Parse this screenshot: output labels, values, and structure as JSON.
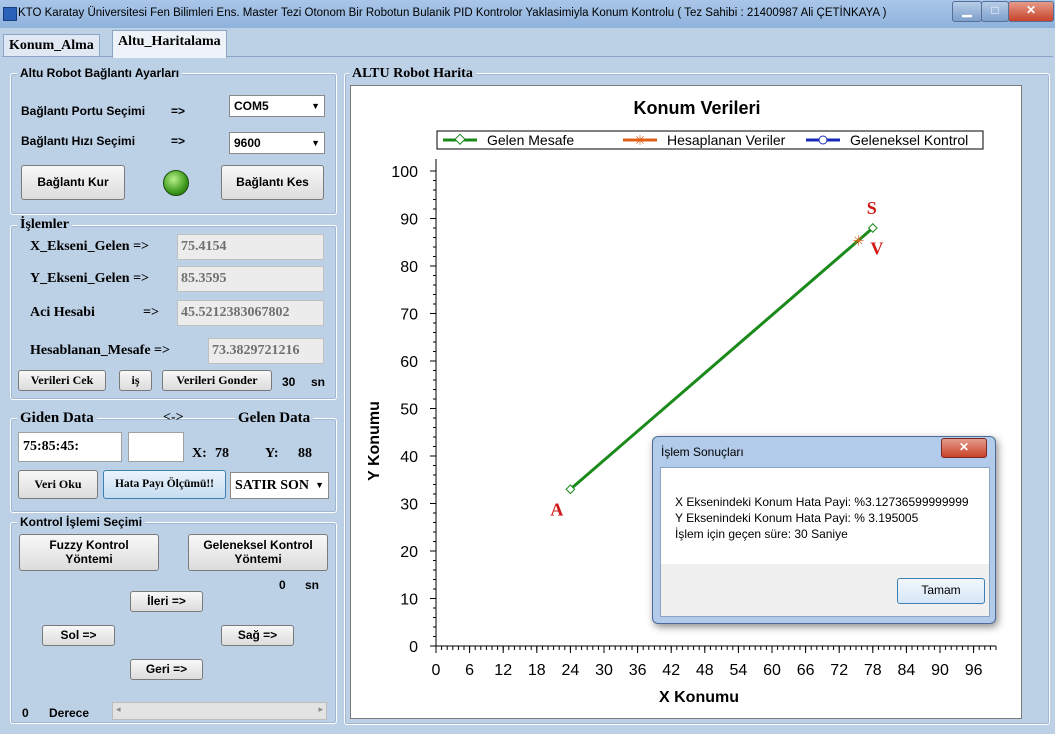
{
  "window": {
    "title": "KTO Karatay Üniversitesi Fen Bilimleri Ens. Master Tezi Otonom Bir Robotun Bulanik PID Kontrolor Yaklasimiyla Konum Kontrolu ( Tez Sahibi : 21400987 Ali ÇETİNKAYA )"
  },
  "tabs": [
    {
      "label": "Konum_Alma"
    },
    {
      "label": "Altu_Haritalama"
    }
  ],
  "connection": {
    "title": "Altu Robot Bağlantı Ayarları",
    "port_label": "Bağlantı Portu Seçimi",
    "port_arrow": "=>",
    "port_value": "COM5",
    "speed_label": "Bağlantı Hızı Seçimi",
    "speed_arrow": "=>",
    "speed_value": "9600",
    "connect_label": "Bağlantı Kur",
    "disconnect_label": "Bağlantı Kes",
    "status_color": "#3c9a1c"
  },
  "operations": {
    "title": "İşlemler",
    "x_label": "X_Ekseni_Gelen =>",
    "x_value": "75.4154",
    "y_label": "Y_Ekseni_Gelen =>",
    "y_value": "85.3595",
    "angle_label": "Aci Hesabi",
    "angle_arrow": "=>",
    "angle_value": "45.5212383067802",
    "dist_label": "Hesablanan_Mesafe =>",
    "dist_value": "73.3829721216",
    "pull_label": "Verileri Cek",
    "is_label": "iş",
    "send_label": "Verileri Gonder",
    "time_value": "30",
    "time_unit": "sn"
  },
  "data": {
    "sent_label": "Giden Data",
    "swap_label": "<->",
    "recv_label": "Gelen  Data",
    "sent_value": "75:85:45:",
    "recv_value": "",
    "x_label": "X:",
    "x_value": "78",
    "y_label": "Y:",
    "y_value": "88",
    "read_label": "Veri Oku",
    "error_label": "Hata Payı Ölçümü!!",
    "combo_value": "SATIR SON"
  },
  "control": {
    "title": "Kontrol İşlemi Seçimi",
    "fuzzy_label": "Fuzzy Kontrol\nYöntemi",
    "classic_label": "Geleneksel Kontrol\nYöntemi",
    "time_value": "0",
    "time_unit": "sn",
    "forward_label": "İleri  =>",
    "left_label": "Sol  =>",
    "right_label": "Sağ  =>",
    "back_label": "Geri  =>",
    "degree_value": "0",
    "degree_label": "Derece"
  },
  "map": {
    "title": "ALTU Robot Harita",
    "point_start_label": "A",
    "point_end_label": "S",
    "point_calc_label": "V"
  },
  "chart_data": {
    "type": "line",
    "title": "Konum Verileri",
    "xlabel": "X Konumu",
    "ylabel": "Y Konumu",
    "xlim": [
      0,
      100
    ],
    "ylim": [
      0,
      100
    ],
    "x_ticks": [
      0,
      6,
      12,
      18,
      24,
      30,
      36,
      42,
      48,
      54,
      60,
      66,
      72,
      78,
      84,
      90,
      96
    ],
    "y_ticks": [
      0,
      10,
      20,
      30,
      40,
      50,
      60,
      70,
      80,
      90,
      100
    ],
    "legend_position": "top",
    "series": [
      {
        "name": "Gelen Mesafe",
        "color": "#1a8a1a",
        "marker": "diamond",
        "points": [
          [
            24,
            33
          ],
          [
            78,
            88
          ]
        ]
      },
      {
        "name": "Hesaplanan Veriler",
        "color": "#e0601a",
        "marker": "star",
        "points": [
          [
            75.4154,
            85.3595
          ]
        ]
      },
      {
        "name": "Geleneksel Kontrol",
        "color": "#1a2ab8",
        "marker": "circle",
        "points": []
      }
    ]
  },
  "dialog": {
    "title": "İşlem Sonuçları",
    "line1": "X Eksenindeki Konum Hata Payi: %3.12736599999999",
    "line2": "Y Eksenindeki Konum Hata Payi:  % 3.195005",
    "line3": "İşlem için geçen süre: 30 Saniye",
    "ok_label": "Tamam"
  }
}
